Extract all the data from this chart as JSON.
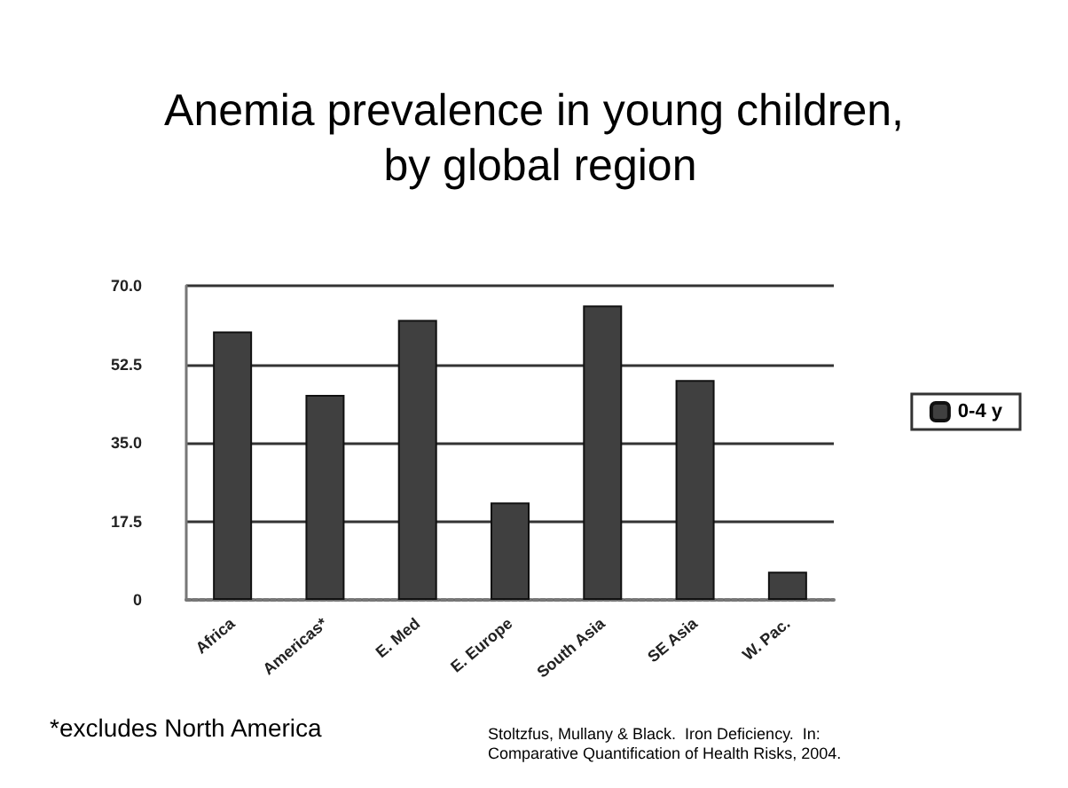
{
  "chart_data": {
    "type": "bar",
    "title": "Anemia prevalence in young children, by global region",
    "categories": [
      "Africa",
      "Americas*",
      "E. Med",
      "E. Europe",
      "South Asia",
      "SE Asia",
      "W. Pac."
    ],
    "series": [
      {
        "name": "0-4 y",
        "color": "#404040",
        "values": [
          59.8,
          45.7,
          62.4,
          21.7,
          65.6,
          49.0,
          6.3
        ]
      }
    ],
    "ylim": [
      0,
      70
    ],
    "yticks": [
      0,
      17.5,
      {
        "value": 35,
        "label": "35.0"
      },
      52.5,
      {
        "value": 70,
        "label": "70.0"
      }
    ],
    "grid": "y",
    "legend": "right",
    "annotations": [
      "*excludes North America",
      "Stoltzfus, Mullany & Black.  Iron Deficiency.  In: Comparative Quantification of Health Risks, 2004."
    ]
  }
}
